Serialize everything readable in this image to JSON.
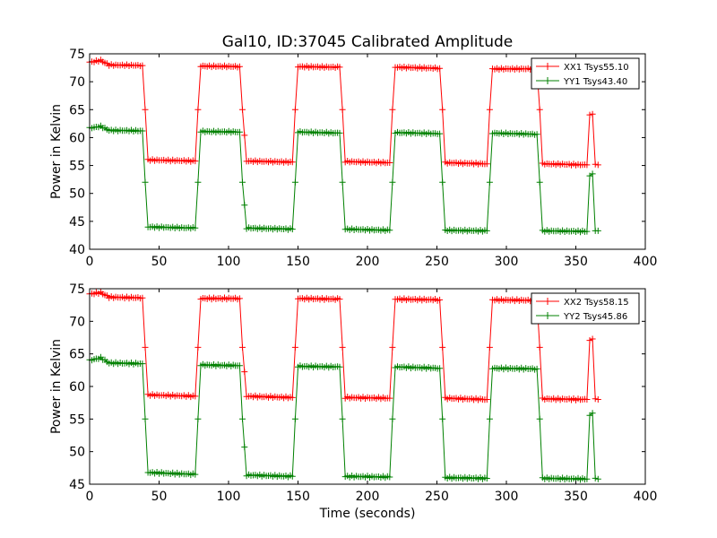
{
  "figure": {
    "title": "Gal10, ID:37045 Calibrated Amplitude",
    "shared_xlabel": "Time (seconds)"
  },
  "chart_data": [
    {
      "type": "line",
      "title": "Gal10, ID:37045 Calibrated Amplitude",
      "xlabel": "",
      "ylabel": "Power in Kelvin",
      "xlim": [
        0,
        400
      ],
      "ylim": [
        40,
        75
      ],
      "xticks": [
        0,
        50,
        100,
        150,
        200,
        250,
        300,
        350,
        400
      ],
      "yticks": [
        40,
        45,
        50,
        55,
        60,
        65,
        70,
        75
      ],
      "grid": false,
      "legend_position": "top-right",
      "marker": "+",
      "series": [
        {
          "name": "XX1 Tsys55.10",
          "color": "#ff0000",
          "points": [
            [
              0,
              73.5
            ],
            [
              8,
              73.8
            ],
            [
              14,
              73.0
            ],
            [
              38,
              72.9
            ],
            [
              40,
              65.0
            ],
            [
              42,
              56.0
            ],
            [
              76,
              55.8
            ],
            [
              78,
              65.0
            ],
            [
              80,
              72.8
            ],
            [
              108,
              72.7
            ],
            [
              110,
              65.0
            ],
            [
              113,
              55.8
            ],
            [
              146,
              55.6
            ],
            [
              148,
              65.0
            ],
            [
              150,
              72.7
            ],
            [
              180,
              72.6
            ],
            [
              182,
              65.0
            ],
            [
              184,
              55.7
            ],
            [
              216,
              55.5
            ],
            [
              218,
              65.0
            ],
            [
              220,
              72.6
            ],
            [
              252,
              72.4
            ],
            [
              254,
              65.0
            ],
            [
              256,
              55.5
            ],
            [
              286,
              55.3
            ],
            [
              288,
              65.0
            ],
            [
              290,
              72.3
            ],
            [
              322,
              72.3
            ],
            [
              324,
              65.0
            ],
            [
              326,
              55.3
            ],
            [
              358,
              55.1
            ],
            [
              360,
              64.0
            ],
            [
              362,
              64.2
            ],
            [
              364,
              55.2
            ],
            [
              366,
              55.1
            ]
          ]
        },
        {
          "name": "YY1 Tsys43.40",
          "color": "#008000",
          "points": [
            [
              0,
              61.7
            ],
            [
              8,
              62.0
            ],
            [
              14,
              61.3
            ],
            [
              38,
              61.2
            ],
            [
              40,
              52.0
            ],
            [
              42,
              44.0
            ],
            [
              76,
              43.8
            ],
            [
              78,
              52.0
            ],
            [
              80,
              61.1
            ],
            [
              108,
              61.0
            ],
            [
              110,
              52.0
            ],
            [
              113,
              43.8
            ],
            [
              146,
              43.6
            ],
            [
              148,
              52.0
            ],
            [
              150,
              61.0
            ],
            [
              180,
              60.8
            ],
            [
              182,
              52.0
            ],
            [
              184,
              43.6
            ],
            [
              216,
              43.4
            ],
            [
              218,
              52.0
            ],
            [
              220,
              60.9
            ],
            [
              252,
              60.7
            ],
            [
              254,
              52.0
            ],
            [
              256,
              43.4
            ],
            [
              286,
              43.3
            ],
            [
              288,
              52.0
            ],
            [
              290,
              60.8
            ],
            [
              322,
              60.6
            ],
            [
              324,
              52.0
            ],
            [
              326,
              43.3
            ],
            [
              358,
              43.2
            ],
            [
              360,
              53.2
            ],
            [
              362,
              53.5
            ],
            [
              364,
              43.4
            ],
            [
              366,
              43.3
            ]
          ]
        }
      ]
    },
    {
      "type": "line",
      "xlabel": "Time (seconds)",
      "ylabel": "Power in Kelvin",
      "xlim": [
        0,
        400
      ],
      "ylim": [
        45,
        75
      ],
      "xticks": [
        0,
        50,
        100,
        150,
        200,
        250,
        300,
        350,
        400
      ],
      "yticks": [
        45,
        50,
        55,
        60,
        65,
        70,
        75
      ],
      "grid": false,
      "legend_position": "top-right",
      "marker": "+",
      "series": [
        {
          "name": "XX2 Tsys58.15",
          "color": "#ff0000",
          "points": [
            [
              0,
              74.2
            ],
            [
              8,
              74.4
            ],
            [
              14,
              73.7
            ],
            [
              38,
              73.6
            ],
            [
              40,
              66.0
            ],
            [
              42,
              58.7
            ],
            [
              76,
              58.5
            ],
            [
              78,
              66.0
            ],
            [
              80,
              73.5
            ],
            [
              108,
              73.5
            ],
            [
              110,
              66.0
            ],
            [
              113,
              58.5
            ],
            [
              146,
              58.3
            ],
            [
              148,
              66.0
            ],
            [
              150,
              73.5
            ],
            [
              180,
              73.4
            ],
            [
              182,
              66.0
            ],
            [
              184,
              58.3
            ],
            [
              216,
              58.2
            ],
            [
              218,
              66.0
            ],
            [
              220,
              73.4
            ],
            [
              252,
              73.3
            ],
            [
              254,
              66.0
            ],
            [
              256,
              58.2
            ],
            [
              286,
              58.0
            ],
            [
              288,
              66.0
            ],
            [
              290,
              73.3
            ],
            [
              322,
              73.2
            ],
            [
              324,
              66.0
            ],
            [
              326,
              58.1
            ],
            [
              358,
              58.0
            ],
            [
              360,
              67.0
            ],
            [
              362,
              67.3
            ],
            [
              364,
              58.1
            ],
            [
              366,
              58.0
            ]
          ]
        },
        {
          "name": "YY2 Tsys45.86",
          "color": "#008000",
          "points": [
            [
              0,
              64.0
            ],
            [
              8,
              64.4
            ],
            [
              14,
              63.6
            ],
            [
              38,
              63.5
            ],
            [
              40,
              55.0
            ],
            [
              42,
              46.8
            ],
            [
              76,
              46.5
            ],
            [
              78,
              55.0
            ],
            [
              80,
              63.3
            ],
            [
              108,
              63.2
            ],
            [
              110,
              55.0
            ],
            [
              113,
              46.4
            ],
            [
              146,
              46.2
            ],
            [
              148,
              55.0
            ],
            [
              150,
              63.1
            ],
            [
              180,
              63.0
            ],
            [
              182,
              55.0
            ],
            [
              184,
              46.2
            ],
            [
              216,
              46.1
            ],
            [
              218,
              55.0
            ],
            [
              220,
              63.0
            ],
            [
              252,
              62.8
            ],
            [
              254,
              55.0
            ],
            [
              256,
              46.0
            ],
            [
              286,
              45.9
            ],
            [
              288,
              55.0
            ],
            [
              290,
              62.8
            ],
            [
              322,
              62.7
            ],
            [
              324,
              55.0
            ],
            [
              326,
              45.9
            ],
            [
              358,
              45.8
            ],
            [
              360,
              55.6
            ],
            [
              362,
              55.9
            ],
            [
              364,
              46.0
            ],
            [
              366,
              45.8
            ]
          ]
        }
      ]
    }
  ]
}
